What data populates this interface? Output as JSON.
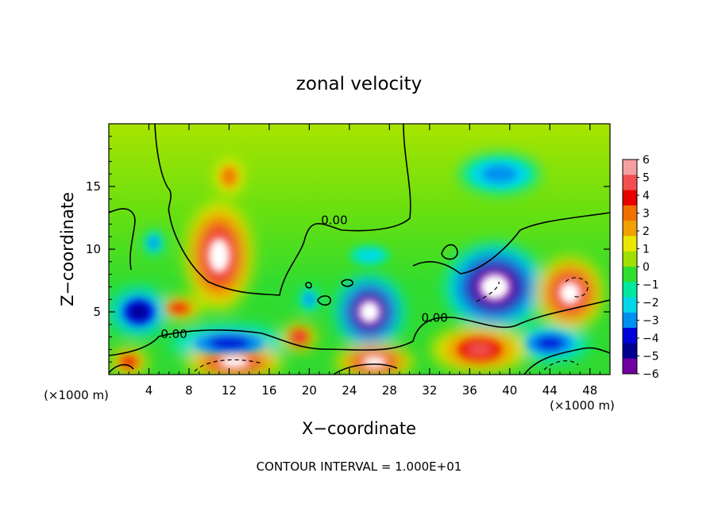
{
  "chart_data": {
    "type": "heatmap",
    "title": "zonal velocity",
    "xlabel": "X−coordinate",
    "ylabel": "Z−coordinate",
    "x_unit_left": "(×1000 m)",
    "x_unit_right": "(×1000 m)",
    "footer": "CONTOUR INTERVAL = 1.000E+01",
    "xlim": [
      0,
      50
    ],
    "ylim": [
      0,
      20
    ],
    "x_ticks": [
      4,
      8,
      12,
      16,
      20,
      24,
      28,
      32,
      36,
      40,
      44,
      48
    ],
    "y_ticks": [
      5,
      10,
      15
    ],
    "contour_labels": [
      {
        "text": "0.00",
        "x": 22.5,
        "y": 12.0
      },
      {
        "text": "0.00",
        "x": 6.5,
        "y": 2.9
      },
      {
        "text": "0.00",
        "x": 32.5,
        "y": 4.2
      }
    ],
    "colorbar": {
      "levels": [
        "6",
        "5",
        "4",
        "3",
        "2",
        "1",
        "0",
        "−1",
        "−2",
        "−3",
        "−4",
        "−5",
        "−6"
      ],
      "colors": [
        "#f4a0a0",
        "#f25050",
        "#e80000",
        "#f07000",
        "#f0a000",
        "#e8e800",
        "#a0e000",
        "#30e030",
        "#00e8a0",
        "#00d8e8",
        "#0090f0",
        "#0000d8",
        "#000090",
        "#7000a0"
      ],
      "saturation_color": "#ffffff"
    },
    "features": [
      {
        "kind": "positive-core",
        "x": 12.0,
        "y": 15.8,
        "rx": 1.6,
        "ry": 1.6,
        "level": 4.0
      },
      {
        "kind": "positive-core",
        "x": 11.0,
        "y": 9.5,
        "rx": 3.5,
        "ry": 4.5,
        "level": 6.5
      },
      {
        "kind": "positive-core",
        "x": 7.0,
        "y": 5.3,
        "rx": 2.5,
        "ry": 1.0,
        "level": 4.5
      },
      {
        "kind": "negative-core",
        "x": 3.0,
        "y": 5.0,
        "rx": 3.0,
        "ry": 2.0,
        "level": -5.0
      },
      {
        "kind": "negative-core",
        "x": 4.5,
        "y": 10.5,
        "rx": 1.0,
        "ry": 1.0,
        "level": -2.5
      },
      {
        "kind": "negative-core",
        "x": 39.0,
        "y": 16.0,
        "rx": 4.0,
        "ry": 1.6,
        "level": -3.0
      },
      {
        "kind": "negative-core",
        "x": 26.0,
        "y": 9.5,
        "rx": 2.0,
        "ry": 0.8,
        "level": -2.0
      },
      {
        "kind": "negative-core",
        "x": 26.0,
        "y": 5.0,
        "rx": 3.5,
        "ry": 3.0,
        "level": -6.5
      },
      {
        "kind": "negative-core",
        "x": 38.5,
        "y": 7.0,
        "rx": 5.0,
        "ry": 3.5,
        "level": -6.5
      },
      {
        "kind": "negative-core",
        "x": 20.0,
        "y": 6.0,
        "rx": 1.0,
        "ry": 1.0,
        "level": -2.5
      },
      {
        "kind": "negative-core",
        "x": 12.0,
        "y": 2.5,
        "rx": 6.0,
        "ry": 1.5,
        "level": -4.0
      },
      {
        "kind": "negative-core",
        "x": 44.0,
        "y": 2.5,
        "rx": 4.0,
        "ry": 1.5,
        "level": -4.0
      },
      {
        "kind": "positive-core",
        "x": 12.5,
        "y": 1.0,
        "rx": 5.0,
        "ry": 1.5,
        "level": 6.5
      },
      {
        "kind": "positive-core",
        "x": 26.5,
        "y": 1.0,
        "rx": 4.0,
        "ry": 1.5,
        "level": 6.5
      },
      {
        "kind": "positive-core",
        "x": 37.0,
        "y": 2.0,
        "rx": 5.0,
        "ry": 2.0,
        "level": 6.0
      },
      {
        "kind": "positive-core",
        "x": 46.0,
        "y": 6.5,
        "rx": 3.5,
        "ry": 3.0,
        "level": 6.5
      },
      {
        "kind": "positive-core",
        "x": 19.0,
        "y": 3.0,
        "rx": 1.8,
        "ry": 1.2,
        "level": 6.0
      },
      {
        "kind": "positive-core",
        "x": 2.0,
        "y": 1.0,
        "rx": 2.0,
        "ry": 1.2,
        "level": 4.5
      }
    ]
  }
}
